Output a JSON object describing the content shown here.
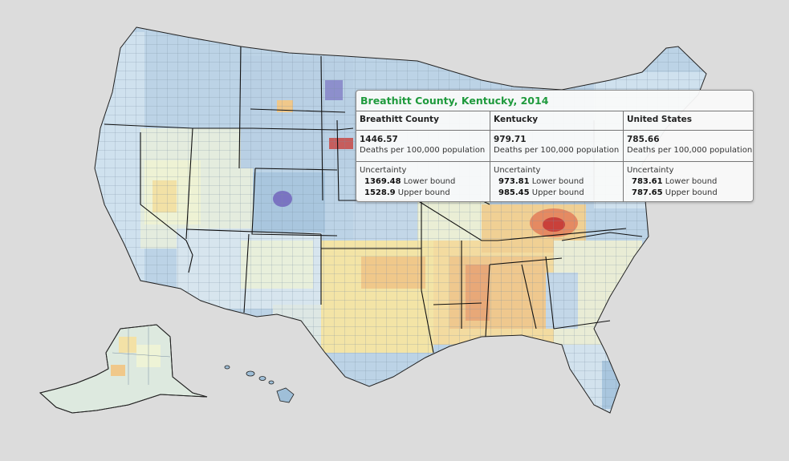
{
  "map": {
    "legend_colors": [
      "#a9c6de",
      "#cfe1ee",
      "#eef3d6",
      "#f3e4a6",
      "#f0c88a",
      "#e58a62",
      "#c9403a",
      "#7a73c2"
    ]
  },
  "tooltip": {
    "title": "Breathitt County, Kentucky, 2014",
    "columns": [
      {
        "header": "Breathitt County",
        "value": "1446.57",
        "unit": "Deaths per 100,000 population",
        "uncertainty_label": "Uncertainty",
        "lower": "1369.48",
        "lower_label": "Lower bound",
        "upper": "1528.9",
        "upper_label": "Upper bound"
      },
      {
        "header": "Kentucky",
        "value": "979.71",
        "unit": "Deaths per 100,000 population",
        "uncertainty_label": "Uncertainty",
        "lower": "973.81",
        "lower_label": "Lower bound",
        "upper": "985.45",
        "upper_label": "Upper bound"
      },
      {
        "header": "United States",
        "value": "785.66",
        "unit": "Deaths per 100,000 population",
        "uncertainty_label": "Uncertainty",
        "lower": "783.61",
        "lower_label": "Lower bound",
        "upper": "787.65",
        "upper_label": "Upper bound"
      }
    ]
  }
}
